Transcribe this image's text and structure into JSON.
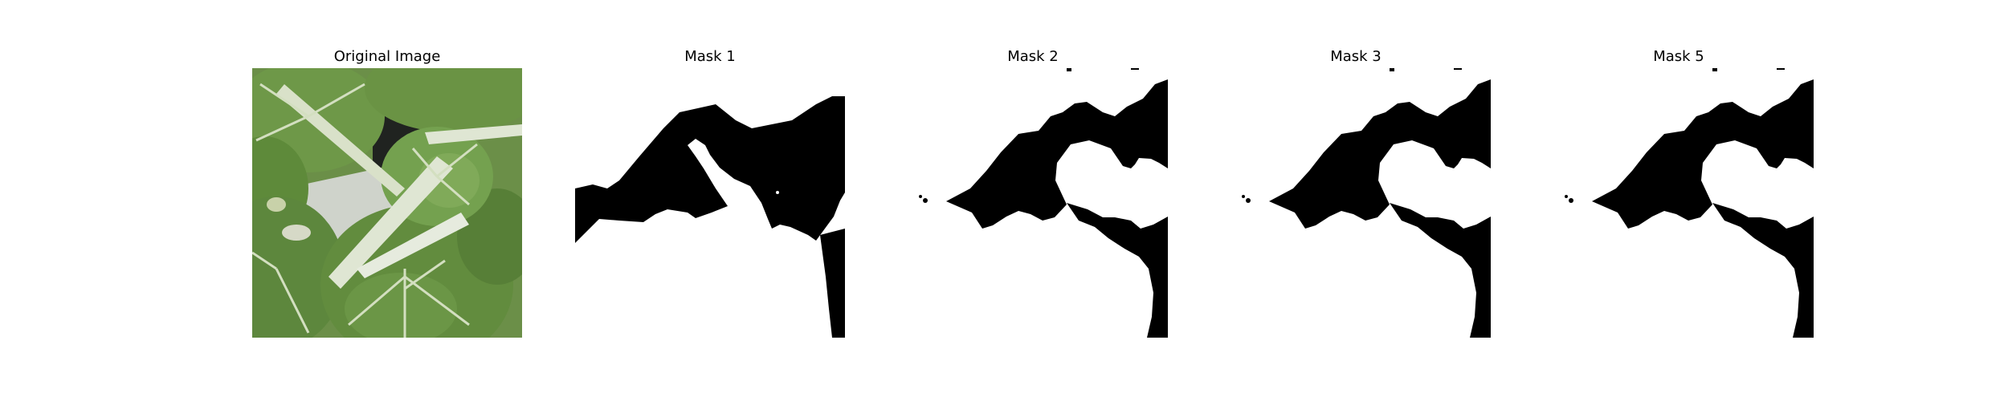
{
  "panels": [
    {
      "title": "Original Image"
    },
    {
      "title": "Mask 1"
    },
    {
      "title": "Mask 2"
    },
    {
      "title": "Mask 3"
    },
    {
      "title": "Mask 5"
    }
  ],
  "colors": {
    "background": "#ffffff",
    "mask_foreground": "#ffffff",
    "mask_background": "#000000",
    "leaf_green": "#5f8a3c",
    "stem_white": "#dfe6d3"
  }
}
